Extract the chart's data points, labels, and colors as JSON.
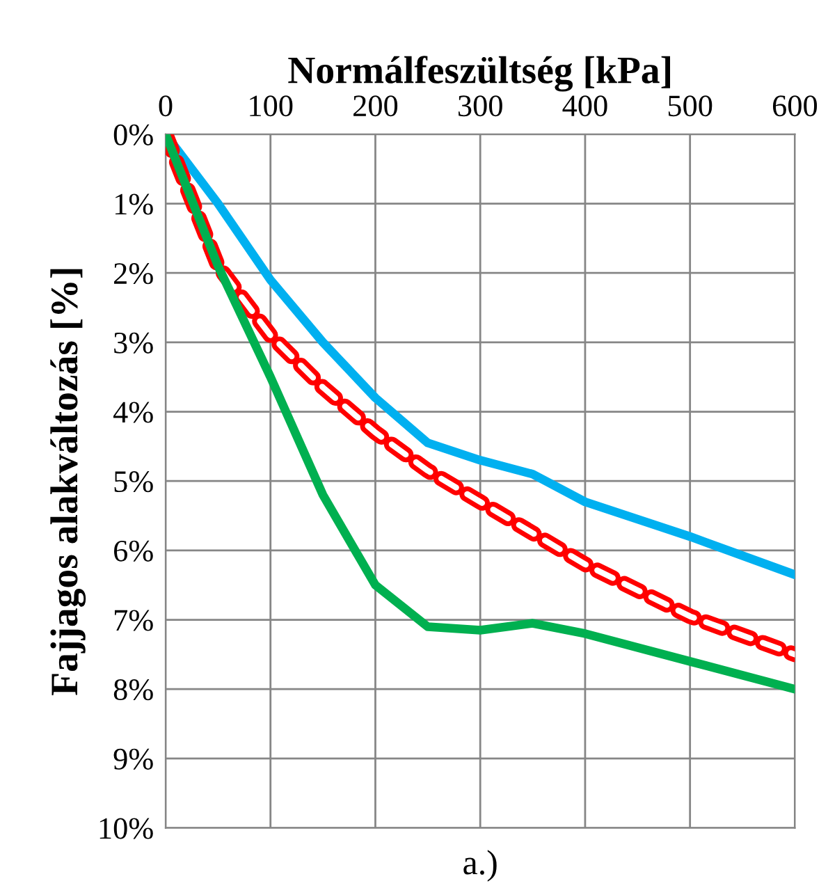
{
  "chart_data": {
    "type": "line",
    "xlabel": "Normálfeszültség [kPa]",
    "ylabel": "Fajjagos alakváltozás [%]",
    "annotations": [
      "a.)"
    ],
    "x": [
      0,
      50,
      100,
      150,
      200,
      250,
      300,
      350,
      400,
      500,
      600
    ],
    "series": [
      {
        "color": "#00b0f0",
        "line_style": "solid",
        "values": [
          0,
          1.0,
          2.1,
          3.0,
          3.8,
          4.45,
          4.7,
          4.9,
          5.3,
          5.8,
          6.35
        ]
      },
      {
        "color": "#ff0000",
        "line_style": "dashed",
        "values": [
          0,
          1.9,
          2.9,
          3.65,
          4.3,
          4.85,
          5.3,
          5.75,
          6.2,
          6.95,
          7.5
        ]
      },
      {
        "color": "#00b050",
        "line_style": "solid",
        "values": [
          0,
          1.9,
          3.5,
          5.2,
          6.5,
          7.1,
          7.15,
          7.05,
          7.2,
          7.6,
          8.0
        ]
      }
    ],
    "xlim": [
      0,
      600
    ],
    "xticks": [
      0,
      100,
      200,
      300,
      400,
      500,
      600
    ],
    "ylim": [
      10,
      0
    ],
    "yticks": [
      {
        "value": 0,
        "label": "0%"
      },
      {
        "value": 1,
        "label": "1%"
      },
      {
        "value": 2,
        "label": "2%"
      },
      {
        "value": 3,
        "label": "3%"
      },
      {
        "value": 4,
        "label": "4%"
      },
      {
        "value": 5,
        "label": "5%"
      },
      {
        "value": 6,
        "label": "6%"
      },
      {
        "value": 7,
        "label": "7%"
      },
      {
        "value": 8,
        "label": "8%"
      },
      {
        "value": 9,
        "label": "9%"
      },
      {
        "value": 10,
        "label": "10%"
      }
    ],
    "grid": true,
    "marker": "none"
  }
}
